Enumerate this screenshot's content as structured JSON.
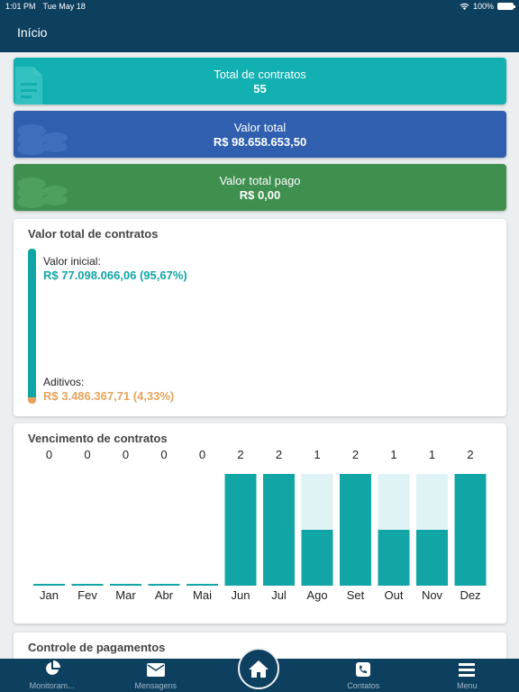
{
  "status_bar": {
    "time": "1:01 PM",
    "date": "Tue May 18",
    "battery": "100%"
  },
  "header": {
    "title": "Início"
  },
  "summary": {
    "contracts": {
      "label": "Total de contratos",
      "value": "55"
    },
    "total": {
      "label": "Valor total",
      "value": "R$ 98.658.653,50"
    },
    "paid": {
      "label": "Valor total pago",
      "value": "R$ 0,00"
    }
  },
  "contracts_panel": {
    "title": "Valor total de contratos",
    "initial_label": "Valor inicial:",
    "initial_value": "R$ 77.098.066,06 (95,67%)",
    "additive_label": "Aditivos:",
    "additive_value": "R$ 3.486.367,71 (4,33%)",
    "initial_share": 0.9567,
    "colors": {
      "initial": "#12a5a5",
      "additive": "#e8a35b"
    }
  },
  "venc_panel": {
    "title": "Vencimento de contratos"
  },
  "chart_data": {
    "type": "bar",
    "title": "Vencimento de contratos",
    "categories": [
      "Jan",
      "Fev",
      "Mar",
      "Abr",
      "Mai",
      "Jun",
      "Jul",
      "Ago",
      "Set",
      "Out",
      "Nov",
      "Dez"
    ],
    "values": [
      0,
      0,
      0,
      0,
      0,
      2,
      2,
      1,
      2,
      1,
      1,
      2
    ],
    "ylim": [
      0,
      2
    ],
    "colors": {
      "bar": "#12a5a5",
      "background": "#dff2f4"
    }
  },
  "payments_panel": {
    "title": "Controle de pagamentos"
  },
  "tabs": [
    {
      "label": "Monitoram...",
      "icon": "pie-chart-icon"
    },
    {
      "label": "Mensagens",
      "icon": "envelope-icon"
    },
    {
      "label": "",
      "icon": "home-icon"
    },
    {
      "label": "Contatos",
      "icon": "phone-icon"
    },
    {
      "label": "Menu",
      "icon": "hamburger-menu-icon"
    }
  ]
}
